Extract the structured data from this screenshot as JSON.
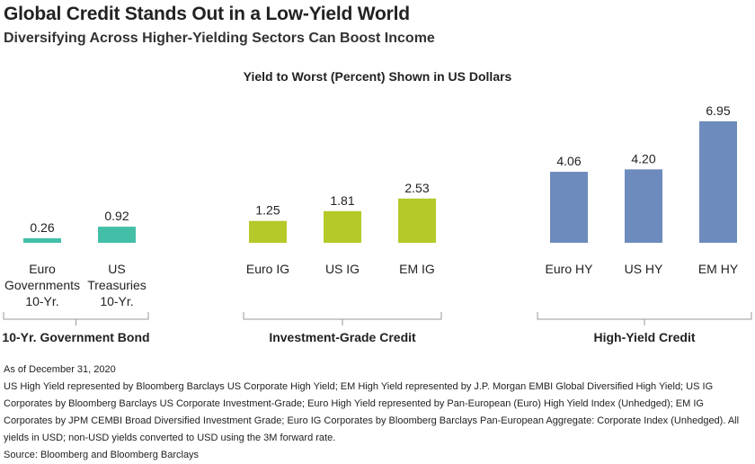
{
  "title": "Global Credit Stands Out in a Low-Yield World",
  "subtitle": "Diversifying Across Higher-Yielding Sectors Can Boost Income",
  "chart_data": {
    "type": "bar",
    "title": "Yield to Worst (Percent) Shown in US Dollars",
    "ylim": [
      0,
      7.2
    ],
    "grid": false,
    "groups": [
      {
        "name": "10-Yr. Government Bond",
        "color": "#43bfa8",
        "categories": [
          [
            "Euro",
            "Governments",
            "10-Yr."
          ],
          [
            "US",
            "Treasuries",
            "10-Yr."
          ]
        ],
        "values": [
          0.26,
          0.92
        ],
        "labels": [
          "0.26",
          "0.92"
        ]
      },
      {
        "name": "Investment-Grade Credit",
        "color": "#b5c928",
        "categories": [
          [
            "Euro IG"
          ],
          [
            "US IG"
          ],
          [
            "EM IG"
          ]
        ],
        "values": [
          1.25,
          1.81,
          2.53
        ],
        "labels": [
          "1.25",
          "1.81",
          "2.53"
        ]
      },
      {
        "name": "High-Yield Credit",
        "color": "#6d8bbc",
        "categories": [
          [
            "Euro HY"
          ],
          [
            "US HY"
          ],
          [
            "EM HY"
          ]
        ],
        "values": [
          4.06,
          4.2,
          6.95
        ],
        "labels": [
          "4.06",
          "4.20",
          "6.95"
        ]
      }
    ]
  },
  "footnotes": {
    "as_of": "As of December 31, 2020",
    "notes": "US High Yield represented by Bloomberg Barclays US Corporate High Yield; EM High Yield represented by J.P. Morgan EMBI Global Diversified High Yield; US IG Corporates by Bloomberg Barclays US Corporate Investment-Grade; Euro High Yield represented by Pan-European (Euro) High Yield Index (Unhedged); EM IG Corporates by JPM CEMBI Broad Diversified Investment Grade; Euro IG Corporates by Bloomberg Barclays Pan-European Aggregate: Corporate Index (Unhedged). All yields in USD; non-USD yields converted to USD using the 3M forward rate.",
    "source": "Source: Bloomberg and Bloomberg Barclays"
  }
}
